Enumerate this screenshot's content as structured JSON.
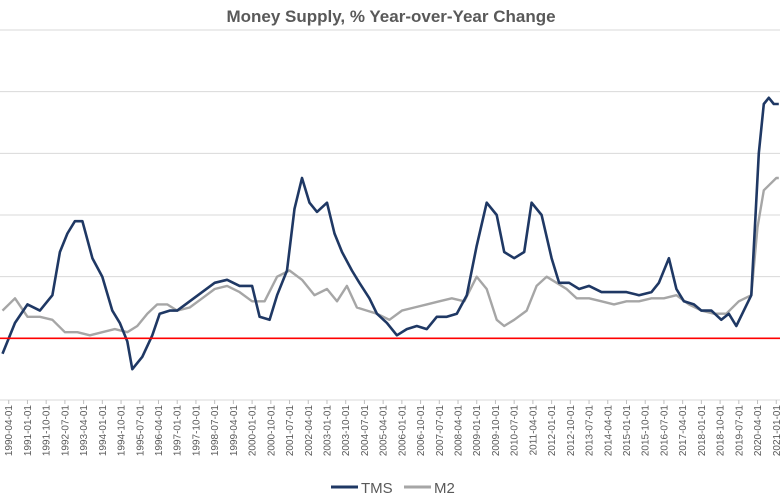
{
  "chart_data": {
    "type": "line",
    "title": "Money Supply, % Year-over-Year Change",
    "xlabel": "",
    "ylabel": "",
    "y_tick_labels_visible": false,
    "grid": "horizontal",
    "legend_position": "bottom",
    "reference_line": {
      "value": 0,
      "color": "#ff0000"
    },
    "x_tick_labels": [
      "1990-04-01",
      "1991-01-01",
      "1991-10-01",
      "1992-07-01",
      "1993-04-01",
      "1994-01-01",
      "1994-10-01",
      "1995-07-01",
      "1996-04-01",
      "1997-01-01",
      "1997-10-01",
      "1998-07-01",
      "1999-04-01",
      "2000-01-01",
      "2000-10-01",
      "2001-07-01",
      "2002-04-01",
      "2003-01-01",
      "2003-10-01",
      "2004-07-01",
      "2005-04-01",
      "2006-01-01",
      "2006-10-01",
      "2007-07-01",
      "2008-04-01",
      "2009-01-01",
      "2009-10-01",
      "2010-07-01",
      "2011-04-01",
      "2012-01-01",
      "2012-10-01",
      "2013-07-01",
      "2014-04-01",
      "2015-01-01",
      "2015-10-01",
      "2016-07-01",
      "2017-04-01",
      "2018-01-01",
      "2018-10-01",
      "2019-07-01",
      "2020-04-01",
      "2021-01-01"
    ],
    "series": [
      {
        "name": "TMS",
        "color": "#1f3864",
        "x": [
          1990.0,
          1990.5,
          1991.0,
          1991.5,
          1992.0,
          1992.3,
          1992.6,
          1992.9,
          1993.2,
          1993.6,
          1994.0,
          1994.4,
          1994.7,
          1995.0,
          1995.2,
          1995.6,
          1996.0,
          1996.3,
          1996.7,
          1997.0,
          1997.5,
          1998.0,
          1998.5,
          1999.0,
          1999.5,
          2000.0,
          2000.3,
          2000.7,
          2001.0,
          2001.4,
          2001.7,
          2002.0,
          2002.3,
          2002.6,
          2003.0,
          2003.3,
          2003.6,
          2004.0,
          2004.3,
          2004.7,
          2005.0,
          2005.4,
          2005.8,
          2006.2,
          2006.6,
          2007.0,
          2007.4,
          2007.8,
          2008.2,
          2008.6,
          2009.0,
          2009.4,
          2009.8,
          2010.1,
          2010.5,
          2010.9,
          2011.2,
          2011.6,
          2012.0,
          2012.3,
          2012.7,
          2013.1,
          2013.5,
          2014.0,
          2014.5,
          2015.0,
          2015.5,
          2016.0,
          2016.3,
          2016.7,
          2017.0,
          2017.3,
          2017.7,
          2018.0,
          2018.4,
          2018.8,
          2019.1,
          2019.4,
          2019.7,
          2020.0,
          2020.3,
          2020.5,
          2020.7,
          2020.9,
          2021.1
        ],
        "values": [
          -2.5,
          2.5,
          5.5,
          4.5,
          7.0,
          14.0,
          17.0,
          19.0,
          19.0,
          13.0,
          10.0,
          4.5,
          2.5,
          -0.5,
          -5.0,
          -3.0,
          0.5,
          4.0,
          4.5,
          4.5,
          6.0,
          7.5,
          9.0,
          9.5,
          8.5,
          8.5,
          3.5,
          3.0,
          7.0,
          11.0,
          21.0,
          26.0,
          22.0,
          20.5,
          22.0,
          17.0,
          14.0,
          11.0,
          9.0,
          6.5,
          4.0,
          2.5,
          0.5,
          1.5,
          2.0,
          1.5,
          3.5,
          3.5,
          4.0,
          7.0,
          15.0,
          22.0,
          20.0,
          14.0,
          13.0,
          14.0,
          22.0,
          20.0,
          13.0,
          9.0,
          9.0,
          8.0,
          8.5,
          7.5,
          7.5,
          7.5,
          7.0,
          7.5,
          9.0,
          13.0,
          8.0,
          6.0,
          5.5,
          4.5,
          4.5,
          3.0,
          4.0,
          2.0,
          4.5,
          7.0,
          30.0,
          38.0,
          39.0,
          38.0,
          38.0
        ]
      },
      {
        "name": "M2",
        "color": "#a6a6a6",
        "x": [
          1990.0,
          1990.5,
          1991.0,
          1991.5,
          1992.0,
          1992.5,
          1993.0,
          1993.5,
          1994.0,
          1994.5,
          1995.0,
          1995.4,
          1995.8,
          1996.2,
          1996.6,
          1997.0,
          1997.5,
          1998.0,
          1998.5,
          1999.0,
          1999.5,
          2000.0,
          2000.5,
          2001.0,
          2001.5,
          2002.0,
          2002.5,
          2003.0,
          2003.4,
          2003.8,
          2004.2,
          2004.6,
          2005.0,
          2005.5,
          2006.0,
          2006.5,
          2007.0,
          2007.5,
          2008.0,
          2008.5,
          2009.0,
          2009.4,
          2009.8,
          2010.1,
          2010.5,
          2011.0,
          2011.4,
          2011.8,
          2012.2,
          2012.6,
          2013.0,
          2013.5,
          2014.0,
          2014.5,
          2015.0,
          2015.5,
          2016.0,
          2016.5,
          2017.0,
          2017.5,
          2018.0,
          2018.5,
          2019.0,
          2019.5,
          2020.0,
          2020.25,
          2020.5,
          2020.75,
          2021.0,
          2021.1
        ],
        "values": [
          4.5,
          6.5,
          3.5,
          3.5,
          3.0,
          1.0,
          1.0,
          0.5,
          1.0,
          1.5,
          1.0,
          2.0,
          4.0,
          5.5,
          5.5,
          4.5,
          5.0,
          6.5,
          8.0,
          8.5,
          7.5,
          6.0,
          6.0,
          10.0,
          11.0,
          9.5,
          7.0,
          8.0,
          6.0,
          8.5,
          5.0,
          4.5,
          4.0,
          3.0,
          4.5,
          5.0,
          5.5,
          6.0,
          6.5,
          6.0,
          10.0,
          8.0,
          3.0,
          2.0,
          3.0,
          4.5,
          8.5,
          10.0,
          9.0,
          8.0,
          6.5,
          6.5,
          6.0,
          5.5,
          6.0,
          6.0,
          6.5,
          6.5,
          7.0,
          5.5,
          4.5,
          4.0,
          4.0,
          6.0,
          7.0,
          18.0,
          24.0,
          25.0,
          26.0,
          26.0
        ]
      }
    ]
  }
}
